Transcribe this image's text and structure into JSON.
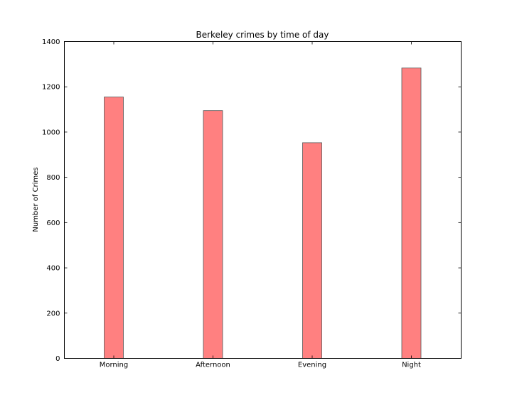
{
  "chart_data": {
    "type": "bar",
    "title": "Berkeley crimes by time of day",
    "xlabel": "",
    "ylabel": "Number of Crimes",
    "categories": [
      "Morning",
      "Afternoon",
      "Evening",
      "Night"
    ],
    "values": [
      1155,
      1095,
      953,
      1283
    ],
    "ylim": [
      0,
      1400
    ],
    "yticks": [
      0,
      200,
      400,
      600,
      800,
      1000,
      1200,
      1400
    ],
    "grid": false,
    "legend": "none",
    "bar_color": "#ff8080",
    "bar_edge_color": "#555555"
  }
}
